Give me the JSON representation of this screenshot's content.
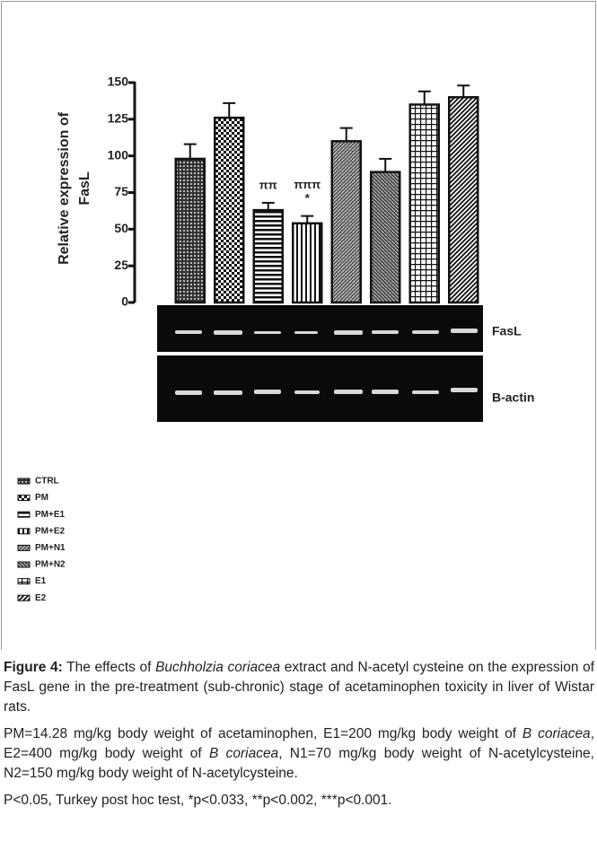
{
  "chart_data": {
    "type": "bar",
    "y_label_lines": [
      "Relative expression of",
      "FasL"
    ],
    "categories": [
      "CTRL",
      "PM",
      "PM+E1",
      "PM+E2",
      "PM+N1",
      "PM+N2",
      "E1",
      "E2"
    ],
    "values": [
      98,
      126,
      63,
      54,
      110,
      89,
      135,
      140
    ],
    "errors": [
      10,
      10,
      5,
      5,
      9,
      9,
      9,
      8
    ],
    "color": "#111111",
    "ylim": [
      0,
      150
    ],
    "yticks": [
      0,
      25,
      50,
      75,
      100,
      125,
      150
    ],
    "annotations": [
      {
        "category": "PM+E1",
        "text": "ππ"
      },
      {
        "category": "PM+E2",
        "text": "*"
      },
      {
        "category": "PM+E2",
        "text": "πππ"
      }
    ],
    "gel_labels": [
      "FasL",
      "B-actin"
    ]
  },
  "caption": {
    "label": "Figure 4:",
    "p1": [
      " The effects of ",
      "Buchholzia coriacea",
      " extract and N-acetyl cysteine on the expression of FasL gene in the pre-treatment (sub-chronic) stage of acetaminophen toxicity in liver of Wistar rats."
    ],
    "p2": [
      "PM=14.28 mg/kg body weight of acetaminophen, E1=200 mg/kg body weight of ",
      "B coriacea",
      ", E2=400 mg/kg body weight of ",
      "B coriacea",
      ", N1=70 mg/kg body weight of N-acetylcysteine, N2=150 mg/kg body weight of N-acetylcysteine."
    ],
    "p3": "P<0.05, Turkey post hoc test, *p<0.033, **p<0.002, ***p<0.001."
  }
}
